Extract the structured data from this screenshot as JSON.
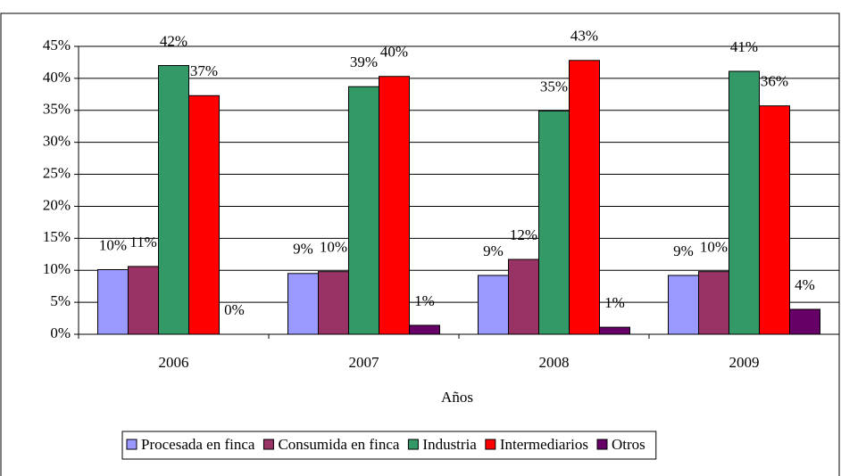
{
  "chart_data": {
    "type": "bar",
    "categories": [
      "2006",
      "2007",
      "2008",
      "2009"
    ],
    "x_label": "Años",
    "series": [
      {
        "name": "Procesada en finca",
        "color": "#9999ff",
        "values": [
          10.1,
          9.5,
          9.2,
          9.2
        ],
        "value_labels": [
          "10%",
          "9%",
          "9%",
          "9%"
        ]
      },
      {
        "name": "Consumida en finca",
        "color": "#993366",
        "values": [
          10.6,
          9.8,
          11.7,
          9.8
        ],
        "value_labels": [
          "11%",
          "10%",
          "12%",
          "10%"
        ]
      },
      {
        "name": "Industria",
        "color": "#339966",
        "values": [
          42.0,
          38.7,
          34.9,
          41.1
        ],
        "value_labels": [
          "42%",
          "39%",
          "35%",
          "41%"
        ]
      },
      {
        "name": "Intermediarios",
        "color": "#ff0000",
        "values": [
          37.3,
          40.3,
          42.8,
          35.7
        ],
        "value_labels": [
          "37%",
          "40%",
          "43%",
          "36%"
        ]
      },
      {
        "name": "Otros",
        "color": "#660066",
        "values": [
          0,
          1.4,
          1.1,
          3.9
        ],
        "value_labels": [
          "0%",
          "1%",
          "1%",
          "4%"
        ]
      }
    ],
    "ylim": [
      0,
      45
    ],
    "yticks": [
      {
        "value": 0,
        "label": "0%"
      },
      {
        "value": 5,
        "label": "5%"
      },
      {
        "value": 10,
        "label": "10%"
      },
      {
        "value": 15,
        "label": "15%"
      },
      {
        "value": 20,
        "label": "20%"
      },
      {
        "value": 25,
        "label": "25%"
      },
      {
        "value": 30,
        "label": "30%"
      },
      {
        "value": 35,
        "label": "35%"
      },
      {
        "value": 40,
        "label": "40%"
      },
      {
        "value": 45,
        "label": "45%"
      }
    ],
    "legend": "bottom"
  }
}
